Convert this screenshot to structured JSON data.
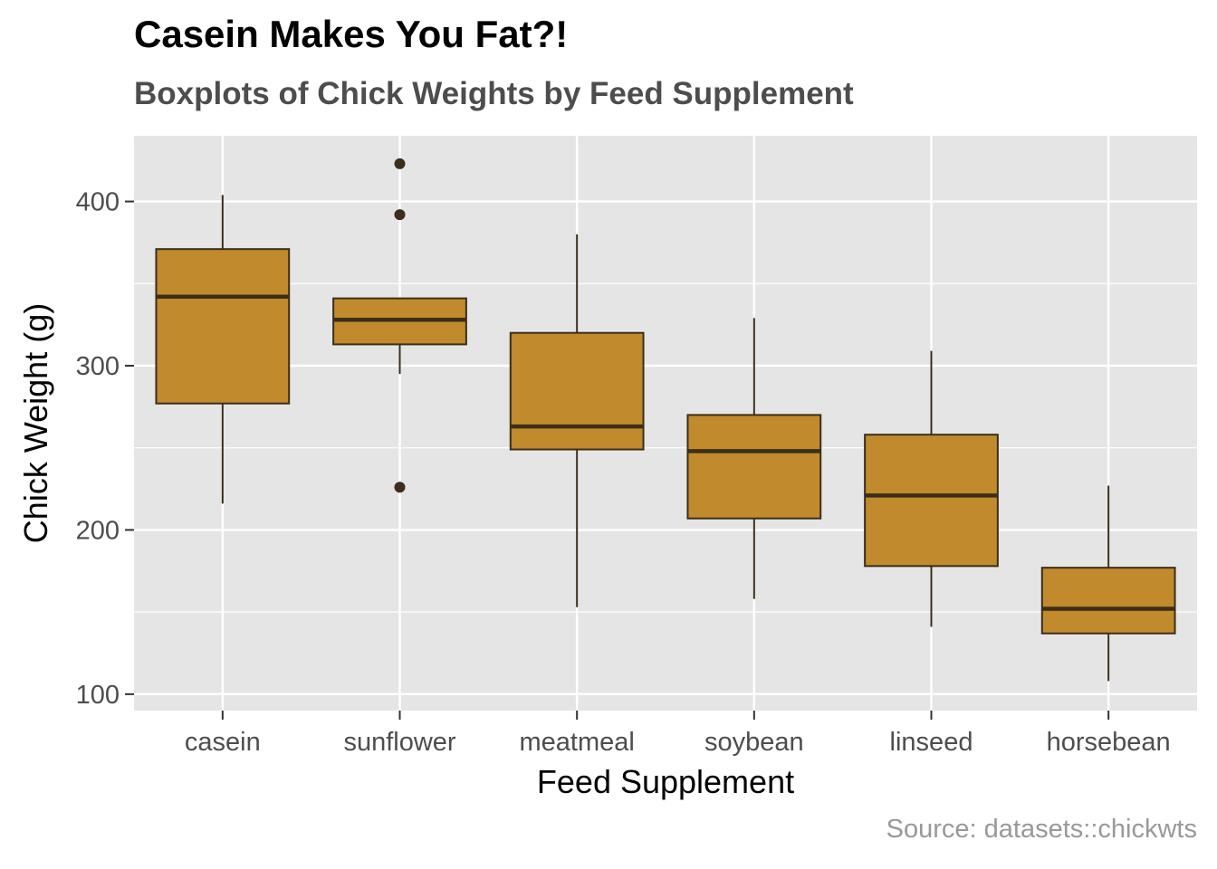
{
  "colors": {
    "panel_background": "#e5e5e5",
    "grid": "#ffffff",
    "box_fill": "#c18a2c",
    "box_outline": "#3b2e1a",
    "axis_text": "#4d4d4d",
    "caption": "#999999"
  },
  "chart_data": {
    "type": "boxplot",
    "title": "Casein Makes You Fat?!",
    "subtitle": "Boxplots of Chick Weights by Feed Supplement",
    "xlabel": "Feed Supplement",
    "ylabel": "Chick Weight (g)",
    "caption": "Source: datasets::chickwts",
    "ylim": [
      90,
      440
    ],
    "yticks": [
      100,
      200,
      300,
      400
    ],
    "ytick_labels": [
      "100",
      "200",
      "300",
      "400"
    ],
    "grid": true,
    "legend": "none",
    "categories": [
      "casein",
      "sunflower",
      "meatmeal",
      "soybean",
      "linseed",
      "horsebean"
    ],
    "boxes": [
      {
        "category": "casein",
        "whisker_low": 216,
        "q1": 277,
        "median": 342,
        "q3": 371,
        "whisker_high": 404,
        "outliers": []
      },
      {
        "category": "sunflower",
        "whisker_low": 295,
        "q1": 313,
        "median": 328,
        "q3": 341,
        "whisker_high": 341,
        "outliers": [
          423,
          392,
          226
        ]
      },
      {
        "category": "meatmeal",
        "whisker_low": 153,
        "q1": 249,
        "median": 263,
        "q3": 320,
        "whisker_high": 380,
        "outliers": []
      },
      {
        "category": "soybean",
        "whisker_low": 158,
        "q1": 207,
        "median": 248,
        "q3": 270,
        "whisker_high": 329,
        "outliers": []
      },
      {
        "category": "linseed",
        "whisker_low": 141,
        "q1": 178,
        "median": 221,
        "q3": 258,
        "whisker_high": 309,
        "outliers": []
      },
      {
        "category": "horsebean",
        "whisker_low": 108,
        "q1": 137,
        "median": 152,
        "q3": 177,
        "whisker_high": 227,
        "outliers": []
      }
    ]
  }
}
